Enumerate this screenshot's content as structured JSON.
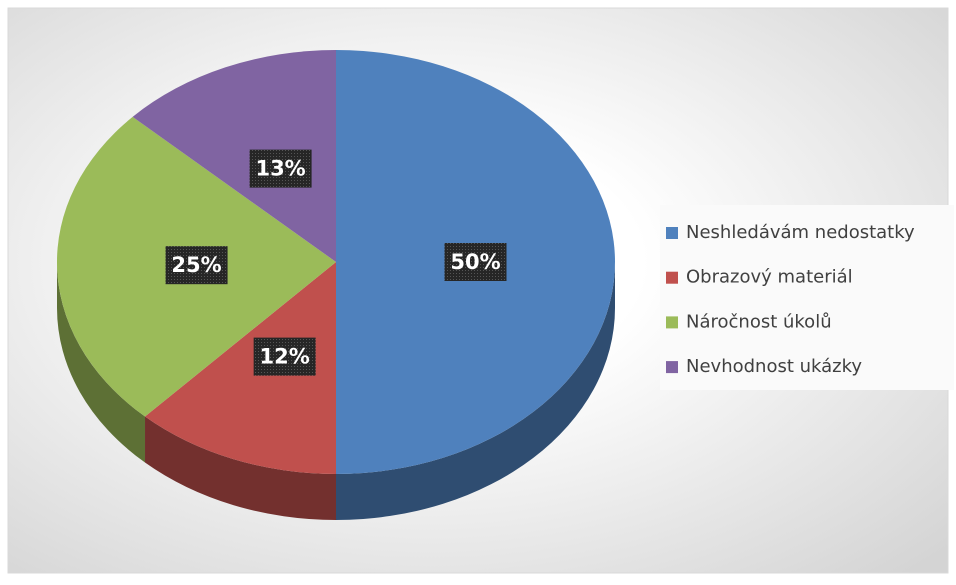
{
  "chart_data": {
    "type": "pie",
    "categories": [
      "Neshledávám nedostatky",
      "Obrazový materiál",
      "Náročnost úkolů",
      "Nevhodnost ukázky"
    ],
    "values": [
      50,
      12,
      25,
      13
    ],
    "value_labels": [
      "50%",
      "12%",
      "25%",
      "13%"
    ],
    "colors": [
      "#4f81bd",
      "#c0504d",
      "#9bbb59",
      "#8064a2"
    ],
    "legend": "right"
  }
}
